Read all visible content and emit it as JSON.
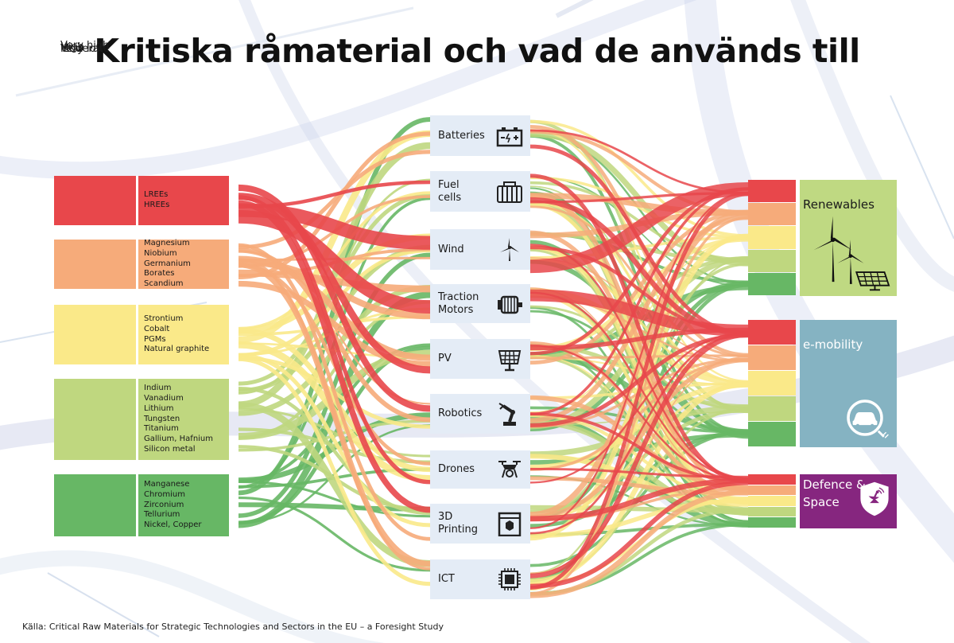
{
  "title": "Kritiska råmaterial och vad de används till",
  "source": "Källa: Critical Raw Materials for Strategic Technologies and Sectors in the EU – a Foresight Study",
  "colors": {
    "very_high": "#e8474b",
    "high": "#f6ab7a",
    "moderate": "#fae989",
    "low": "#bfd77f",
    "very_low": "#67b765",
    "tech_bg": "#e4ecf6",
    "renewables": "#bfd982",
    "e_mobility": "#85b3c2",
    "defence": "#86267f"
  },
  "risk_levels": [
    {
      "id": "very_high",
      "label": "Very high",
      "materials": [
        "LREEs",
        "HREEs"
      ]
    },
    {
      "id": "high",
      "label": "High",
      "materials": [
        "Magnesium",
        "Niobium",
        "Germanium",
        "Borates",
        "Scandium"
      ]
    },
    {
      "id": "moderate",
      "label": "Moderate",
      "materials": [
        "Strontium",
        "Cobalt",
        "PGMs",
        "Natural graphite"
      ]
    },
    {
      "id": "low",
      "label": "Low",
      "materials": [
        "Indium",
        "Vanadium",
        "Lithium",
        "Tungsten",
        "Titanium",
        "Gallium, Hafnium",
        "Silicon metal"
      ]
    },
    {
      "id": "very_low",
      "label": "Very low",
      "materials": [
        "Manganese",
        "Chromium",
        "Zirconium",
        "Tellurium",
        "Nickel, Copper"
      ]
    }
  ],
  "technologies": [
    {
      "id": "batteries",
      "label": [
        "Batteries"
      ],
      "icon": "battery-icon"
    },
    {
      "id": "fuel_cells",
      "label": [
        "Fuel",
        "cells"
      ],
      "icon": "fuel-cell-icon"
    },
    {
      "id": "wind",
      "label": [
        "Wind"
      ],
      "icon": "wind-turbine-icon"
    },
    {
      "id": "traction_motors",
      "label": [
        "Traction",
        "Motors"
      ],
      "icon": "electric-motor-icon"
    },
    {
      "id": "pv",
      "label": [
        "PV"
      ],
      "icon": "solar-panel-icon"
    },
    {
      "id": "robotics",
      "label": [
        "Robotics"
      ],
      "icon": "robot-arm-icon"
    },
    {
      "id": "drones",
      "label": [
        "Drones"
      ],
      "icon": "drone-icon"
    },
    {
      "id": "printing_3d",
      "label": [
        "3D",
        "Printing"
      ],
      "icon": "3d-printer-icon"
    },
    {
      "id": "ict",
      "label": [
        "ICT"
      ],
      "icon": "microchip-icon"
    }
  ],
  "sectors": [
    {
      "id": "renewables",
      "label": [
        "Renewables"
      ],
      "icon": "wind-and-solar-icon"
    },
    {
      "id": "e_mobility",
      "label": [
        "e-mobility"
      ],
      "icon": "electric-car-icon"
    },
    {
      "id": "defence_space",
      "label": [
        "Defence &",
        "Space"
      ],
      "icon": "satellite-shield-icon"
    }
  ]
}
